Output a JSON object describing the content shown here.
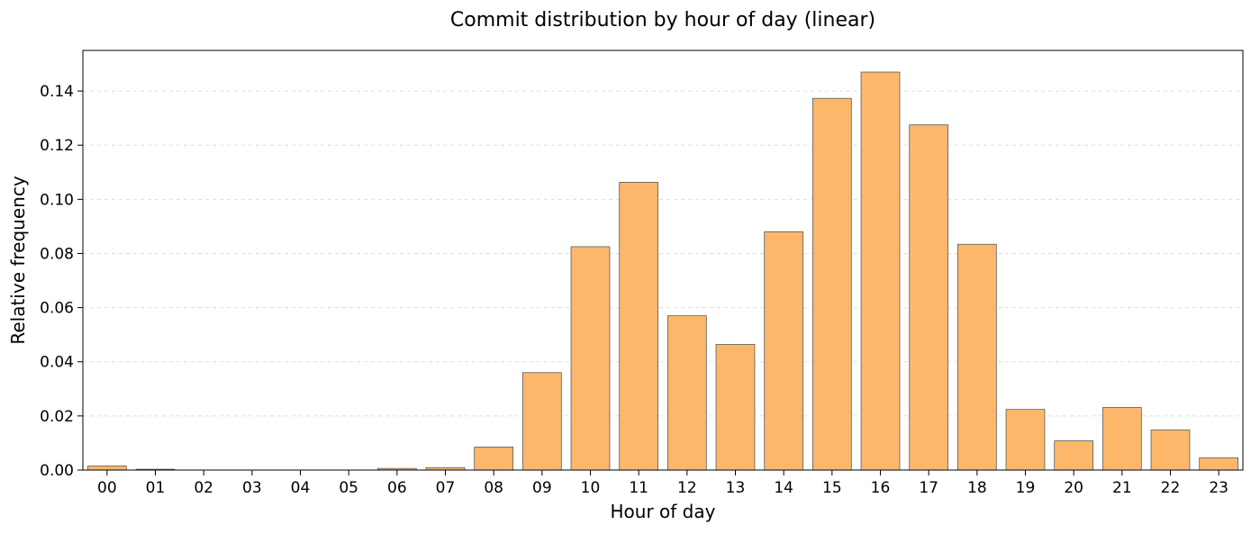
{
  "chart_data": {
    "type": "bar",
    "title": "Commit distribution by hour of day (linear)",
    "xlabel": "Hour of day",
    "ylabel": "Relative frequency",
    "categories": [
      "00",
      "01",
      "02",
      "03",
      "04",
      "05",
      "06",
      "07",
      "08",
      "09",
      "10",
      "11",
      "12",
      "13",
      "14",
      "15",
      "16",
      "17",
      "18",
      "19",
      "20",
      "21",
      "22",
      "23"
    ],
    "values": [
      0.0015,
      0.0003,
      0.0,
      0.0,
      0.0,
      0.0,
      0.0006,
      0.0009,
      0.0085,
      0.036,
      0.0825,
      0.1063,
      0.057,
      0.0464,
      0.088,
      0.1373,
      0.147,
      0.1275,
      0.0834,
      0.0224,
      0.0108,
      0.0231,
      0.0148,
      0.0045
    ],
    "ylim": [
      0,
      0.155
    ],
    "yticks": [
      0.0,
      0.02,
      0.04,
      0.06,
      0.08,
      0.1,
      0.12,
      0.14
    ],
    "ytick_labels": [
      "0.00",
      "0.02",
      "0.04",
      "0.06",
      "0.08",
      "0.10",
      "0.12",
      "0.14"
    ],
    "grid": "y-dashed",
    "legend": "none",
    "colors": {
      "bar_fill": "#fdb76b",
      "bar_edge": "#5a5a5a",
      "grid": "#dddddd",
      "axis": "#000000"
    }
  }
}
